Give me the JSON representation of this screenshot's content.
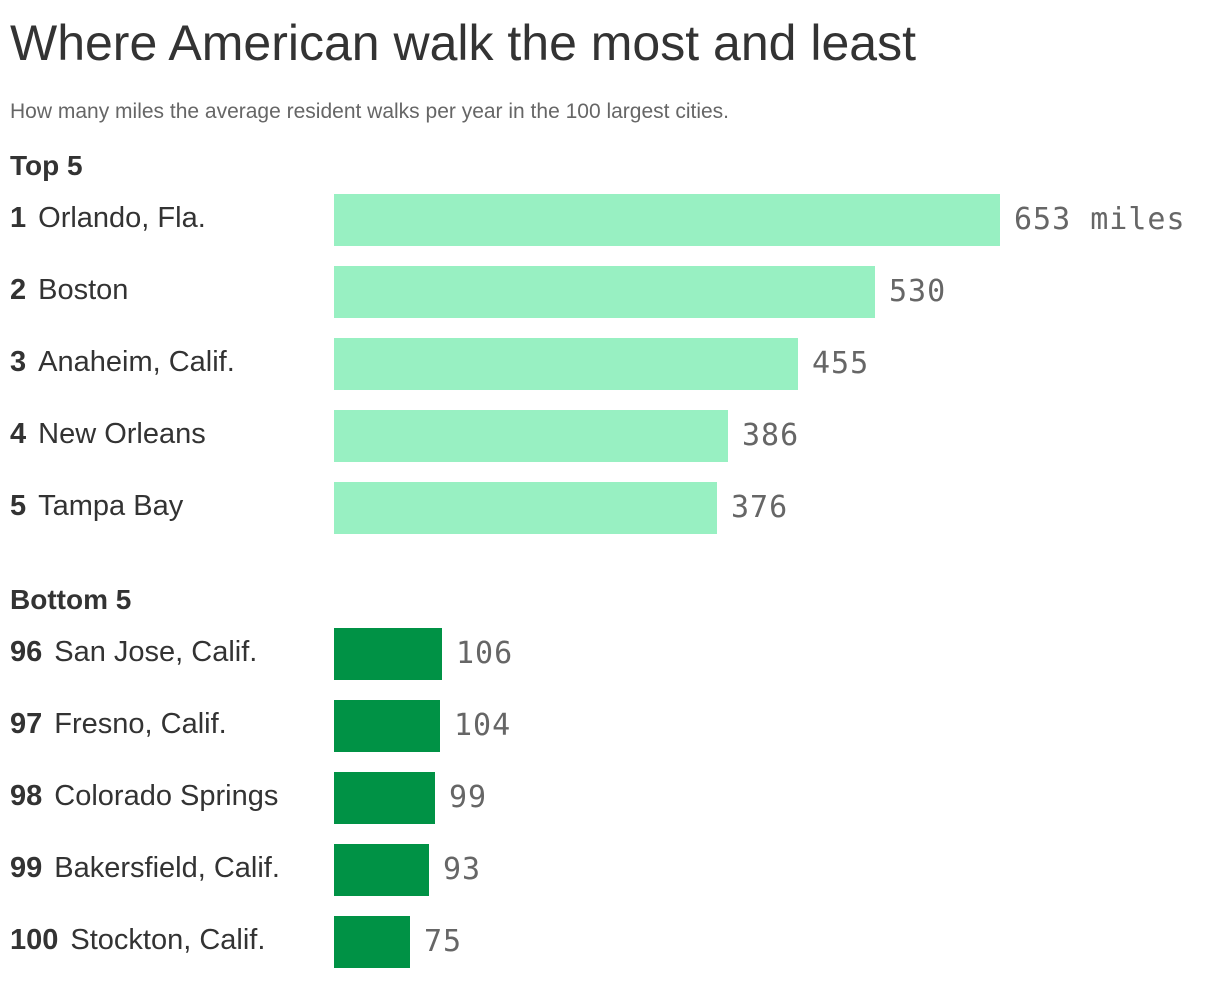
{
  "header": {
    "title": "Where American walk the most and least",
    "subtitle": "How many miles the average resident walks per year in the 100 largest cities."
  },
  "chart_data": {
    "type": "bar",
    "orientation": "horizontal",
    "title": "Where American walk the most and least",
    "subtitle": "How many miles the average resident walks per year in the 100 largest cities.",
    "unit": "miles",
    "groups": [
      {
        "label": "Top 5",
        "color": "#98f0c2",
        "items": [
          {
            "rank": "1",
            "city": "Orlando, Fla.",
            "value": 653,
            "value_label": "653 miles"
          },
          {
            "rank": "2",
            "city": "Boston",
            "value": 530,
            "value_label": "530"
          },
          {
            "rank": "3",
            "city": "Anaheim, Calif.",
            "value": 455,
            "value_label": "455"
          },
          {
            "rank": "4",
            "city": "New Orleans",
            "value": 386,
            "value_label": "386"
          },
          {
            "rank": "5",
            "city": "Tampa Bay",
            "value": 376,
            "value_label": "376"
          }
        ]
      },
      {
        "label": "Bottom 5",
        "color": "#009245",
        "items": [
          {
            "rank": "96",
            "city": "San Jose, Calif.",
            "value": 106,
            "value_label": "106"
          },
          {
            "rank": "97",
            "city": "Fresno, Calif.",
            "value": 104,
            "value_label": "104"
          },
          {
            "rank": "98",
            "city": "Colorado Springs",
            "value": 99,
            "value_label": "99"
          },
          {
            "rank": "99",
            "city": "Bakersfield, Calif.",
            "value": 93,
            "value_label": "93"
          },
          {
            "rank": "100",
            "city": "Stockton, Calif.",
            "value": 75,
            "value_label": "75"
          }
        ]
      }
    ],
    "xlim": [
      0,
      653
    ],
    "grid": false,
    "legend": "none"
  }
}
